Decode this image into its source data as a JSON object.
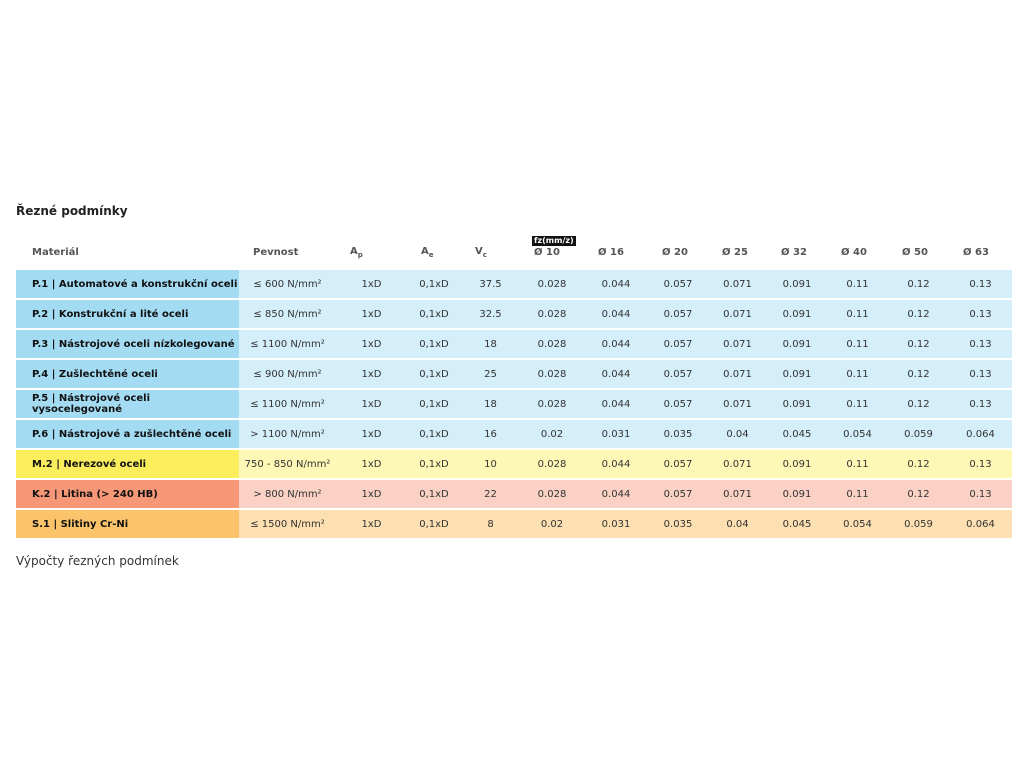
{
  "header": {
    "title": "Řezné podmínky"
  },
  "table": {
    "columns": [
      {
        "text": "Materiál"
      },
      {
        "text": "Pevnost"
      },
      {
        "text": "A",
        "sub": "p"
      },
      {
        "text": "A",
        "sub": "e"
      },
      {
        "text": "V",
        "sub": "c"
      },
      {
        "text": "Ø 10",
        "badge": "fz(mm/z)"
      },
      {
        "text": "Ø 16"
      },
      {
        "text": "Ø 20"
      },
      {
        "text": "Ø 25"
      },
      {
        "text": "Ø 32"
      },
      {
        "text": "Ø 40"
      },
      {
        "text": "Ø 50"
      },
      {
        "text": "Ø 63"
      }
    ],
    "rows": [
      {
        "material_color": "#a3dbf3",
        "row_color": "#d4eefa",
        "cells": [
          "P.1 | Automatové a konstrukční oceli",
          "≤ 600 N/mm²",
          "1xD",
          "0,1xD",
          "37.5",
          "0.028",
          "0.044",
          "0.057",
          "0.071",
          "0.091",
          "0.11",
          "0.12",
          "0.13"
        ]
      },
      {
        "material_color": "#a3dbf3",
        "row_color": "#d4eefa",
        "cells": [
          "P.2 | Konstrukční a lité oceli",
          "≤ 850 N/mm²",
          "1xD",
          "0,1xD",
          "32.5",
          "0.028",
          "0.044",
          "0.057",
          "0.071",
          "0.091",
          "0.11",
          "0.12",
          "0.13"
        ]
      },
      {
        "material_color": "#a3dbf3",
        "row_color": "#d4eefa",
        "cells": [
          "P.3 | Nástrojové oceli nízkolegované",
          "≤ 1100 N/mm²",
          "1xD",
          "0,1xD",
          "18",
          "0.028",
          "0.044",
          "0.057",
          "0.071",
          "0.091",
          "0.11",
          "0.12",
          "0.13"
        ]
      },
      {
        "material_color": "#a3dbf3",
        "row_color": "#d4eefa",
        "cells": [
          "P.4 | Zušlechtěné oceli",
          "≤ 900 N/mm²",
          "1xD",
          "0,1xD",
          "25",
          "0.028",
          "0.044",
          "0.057",
          "0.071",
          "0.091",
          "0.11",
          "0.12",
          "0.13"
        ]
      },
      {
        "material_color": "#a3dbf3",
        "row_color": "#d4eefa",
        "cells": [
          "P.5 | Nástrojové oceli vysocelegované",
          "≤ 1100 N/mm²",
          "1xD",
          "0,1xD",
          "18",
          "0.028",
          "0.044",
          "0.057",
          "0.071",
          "0.091",
          "0.11",
          "0.12",
          "0.13"
        ]
      },
      {
        "material_color": "#a3dbf3",
        "row_color": "#d4eefa",
        "cells": [
          "P.6 | Nástrojové a zušlechtěné oceli",
          "> 1100 N/mm²",
          "1xD",
          "0,1xD",
          "16",
          "0.02",
          "0.031",
          "0.035",
          "0.04",
          "0.045",
          "0.054",
          "0.059",
          "0.064"
        ]
      },
      {
        "material_color": "#fbee5c",
        "row_color": "#fdf8b6",
        "cells": [
          "M.2 | Nerezové oceli",
          "750 - 850 N/mm²",
          "1xD",
          "0,1xD",
          "10",
          "0.028",
          "0.044",
          "0.057",
          "0.071",
          "0.091",
          "0.11",
          "0.12",
          "0.13"
        ]
      },
      {
        "material_color": "#f69878",
        "row_color": "#fad1c4",
        "cells": [
          "K.2 | Litina (> 240 HB)",
          "> 800 N/mm²",
          "1xD",
          "0,1xD",
          "22",
          "0.028",
          "0.044",
          "0.057",
          "0.071",
          "0.091",
          "0.11",
          "0.12",
          "0.13"
        ]
      },
      {
        "material_color": "#fbc46a",
        "row_color": "#fde0b1",
        "cells": [
          "S.1 | Slitiny Cr-Ni",
          "≤ 1500 N/mm²",
          "1xD",
          "0,1xD",
          "8",
          "0.02",
          "0.031",
          "0.035",
          "0.04",
          "0.045",
          "0.054",
          "0.059",
          "0.064"
        ]
      }
    ]
  },
  "footer": {
    "text": "Výpočty řezných podmínek"
  }
}
